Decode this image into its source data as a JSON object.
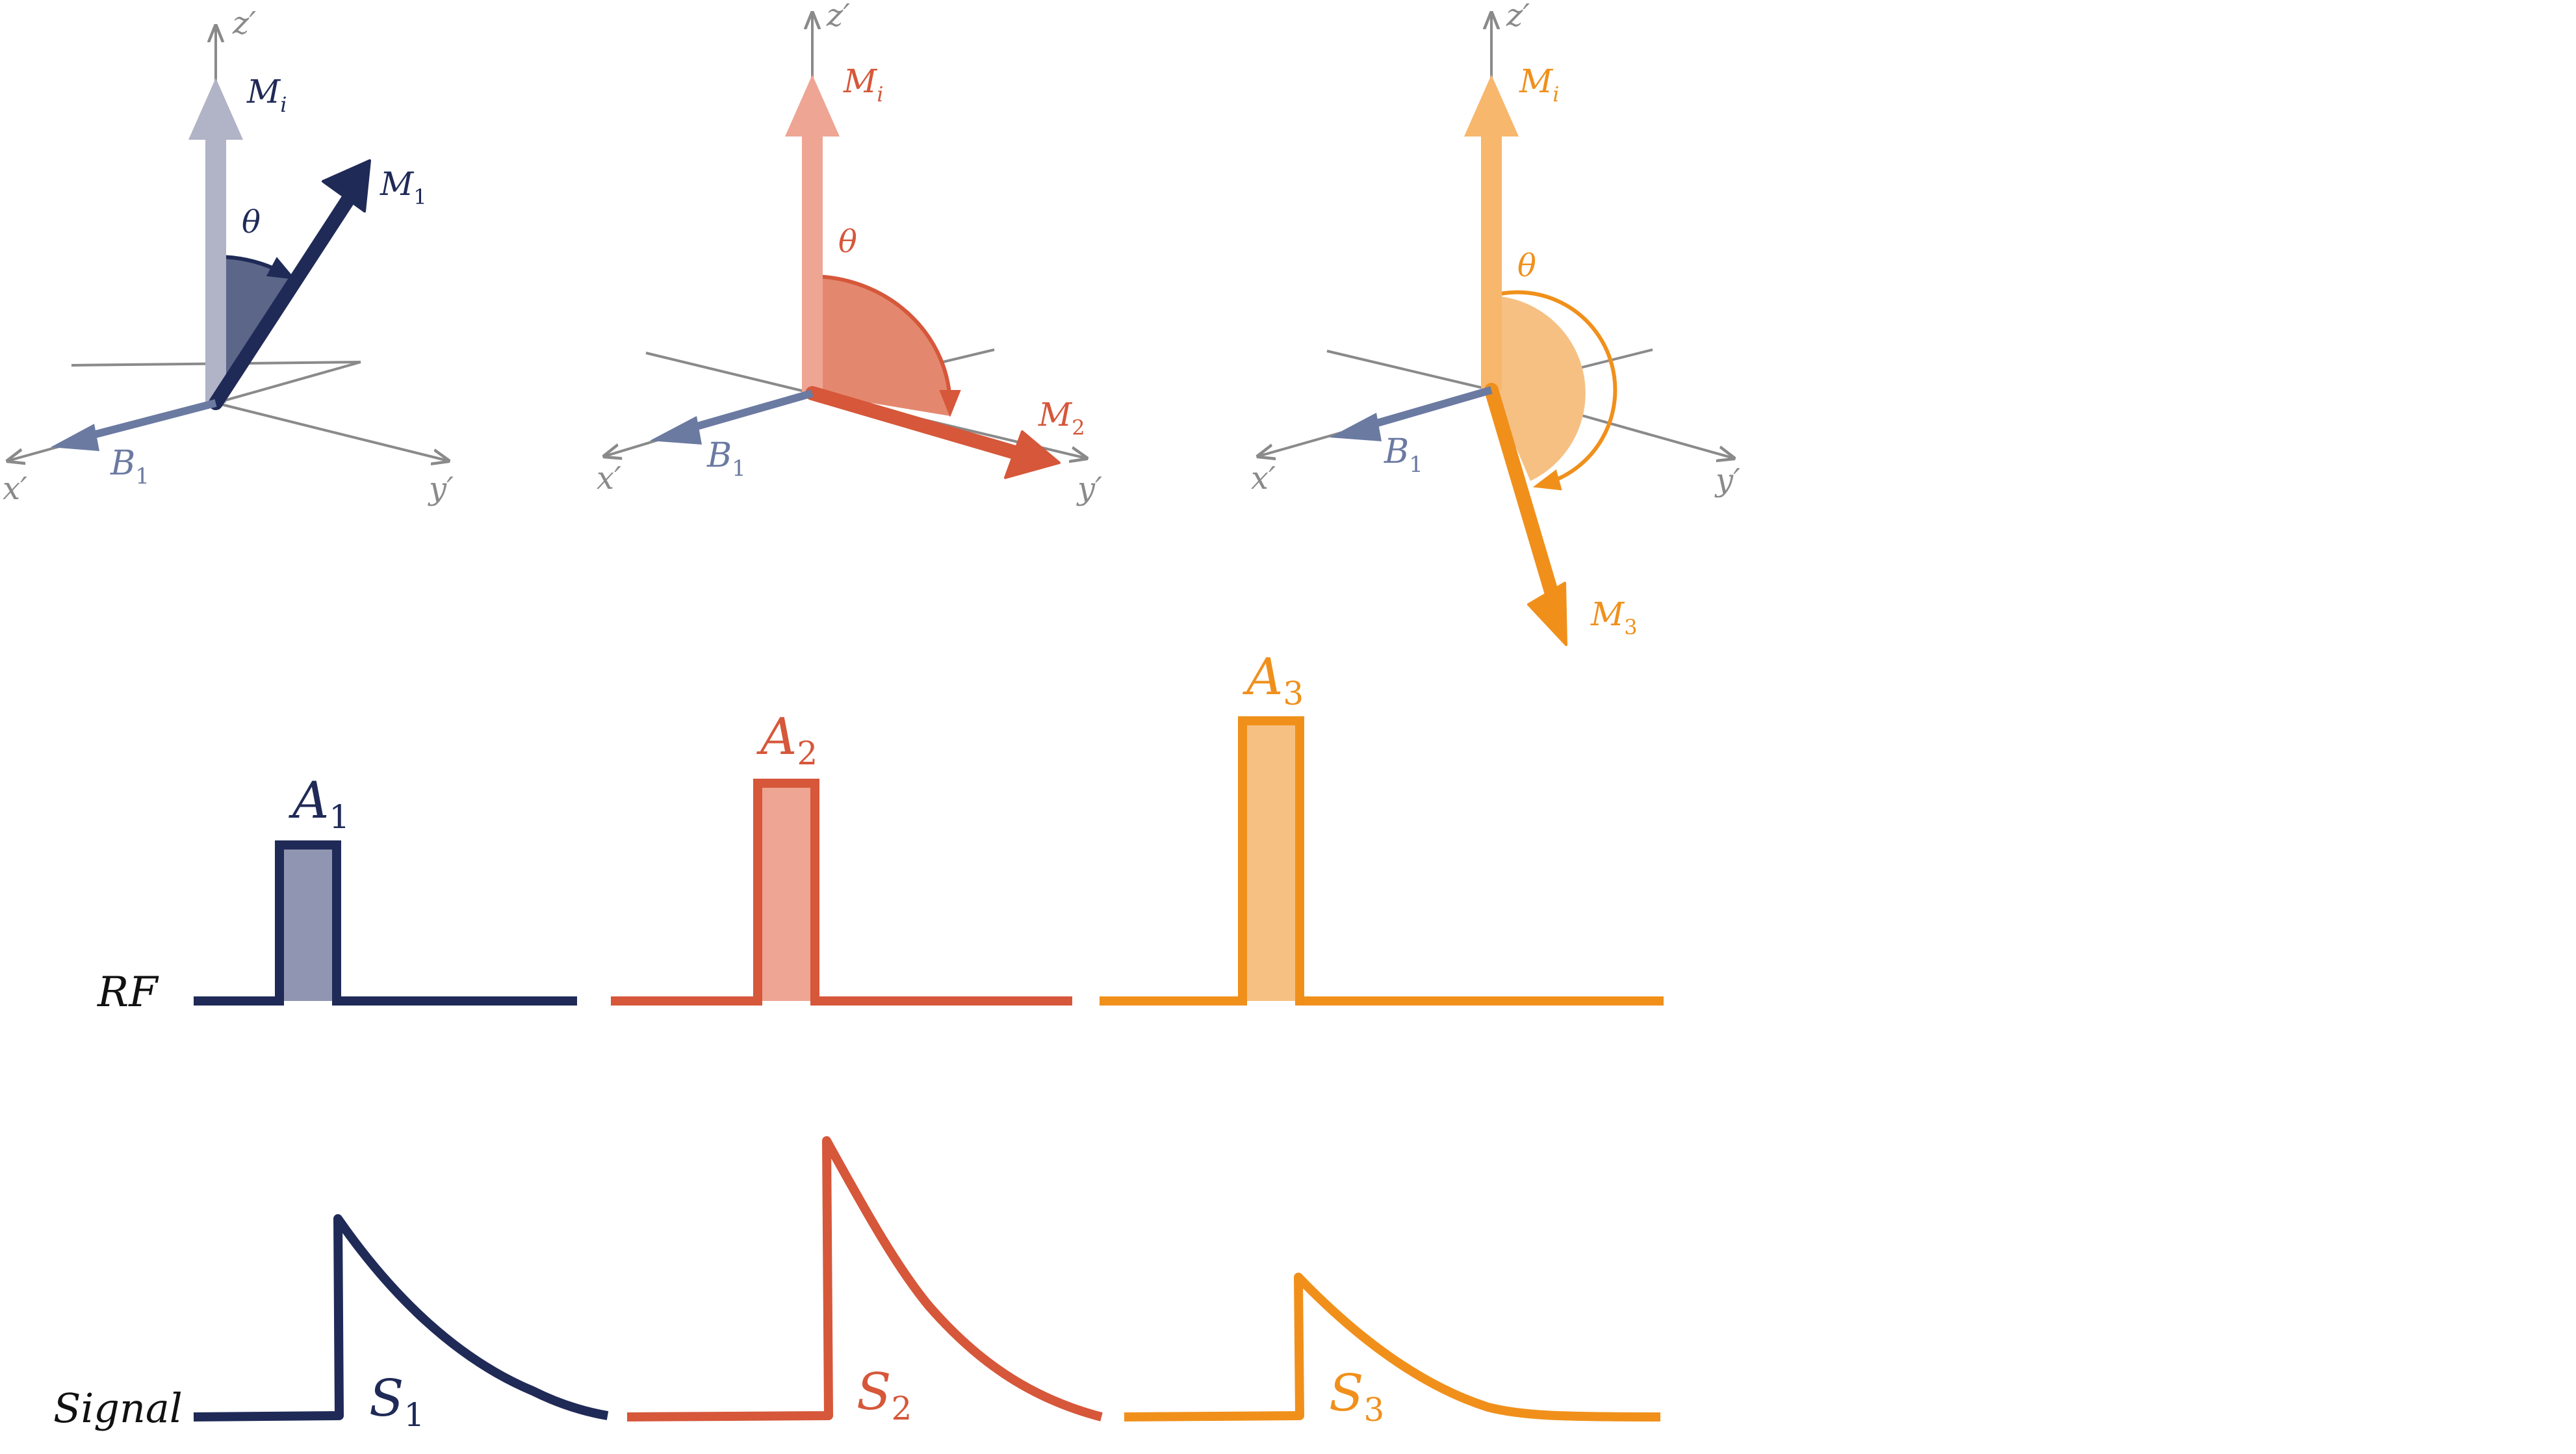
{
  "colors": {
    "navy": "#1f2a57",
    "navy_fill": "#5b6689",
    "navy_pulse_fill": "#9096b1",
    "gray_arrow": "#b1b3c6",
    "b1_blue": "#6b7aa1",
    "coral": "#d6573a",
    "coral_fill": "#e3886f",
    "coral_light": "#eea594",
    "orange": "#f0901b",
    "orange_fill": "#f6c083",
    "orange_light": "#f7b76c",
    "axis_gray": "#8a8a8a"
  },
  "panels": [
    {
      "axes": {
        "x": "x′",
        "y": "y′",
        "z": "z′"
      },
      "initial": {
        "base": "M",
        "sub": "i"
      },
      "rotated": {
        "base": "M",
        "sub": "1"
      },
      "field": {
        "base": "B",
        "sub": "1"
      },
      "angle": "θ"
    },
    {
      "axes": {
        "x": "x′",
        "y": "y′",
        "z": "z′"
      },
      "initial": {
        "base": "M",
        "sub": "i"
      },
      "rotated": {
        "base": "M",
        "sub": "2"
      },
      "field": {
        "base": "B",
        "sub": "1"
      },
      "angle": "θ"
    },
    {
      "axes": {
        "x": "x′",
        "y": "y′",
        "z": "z′"
      },
      "initial": {
        "base": "M",
        "sub": "i"
      },
      "rotated": {
        "base": "M",
        "sub": "3"
      },
      "field": {
        "base": "B",
        "sub": "1"
      },
      "angle": "θ"
    }
  ],
  "rows": {
    "rf_label": "RF",
    "signal_label": "Signal"
  },
  "pulses": [
    {
      "base": "A",
      "sub": "1"
    },
    {
      "base": "A",
      "sub": "2"
    },
    {
      "base": "A",
      "sub": "3"
    }
  ],
  "signals": [
    {
      "base": "S",
      "sub": "1"
    },
    {
      "base": "S",
      "sub": "2"
    },
    {
      "base": "S",
      "sub": "3"
    }
  ]
}
